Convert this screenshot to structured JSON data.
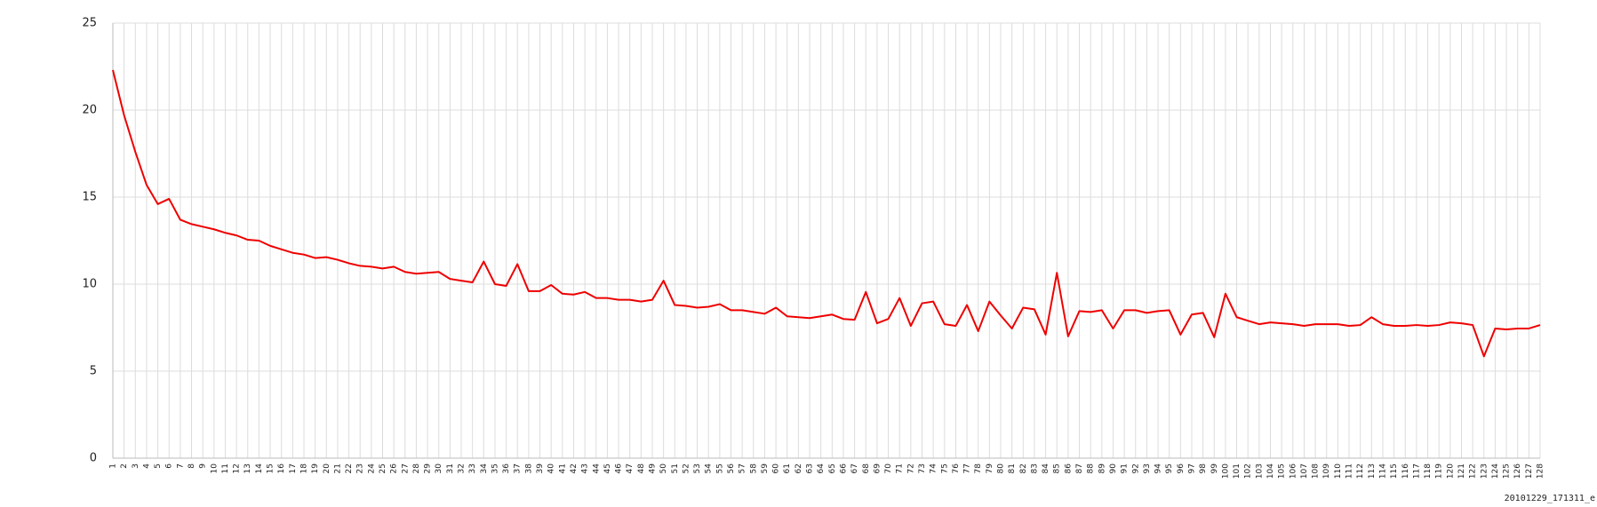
{
  "chart_data": {
    "type": "line",
    "categories": [
      "1",
      "2",
      "3",
      "4",
      "5",
      "6",
      "7",
      "8",
      "9",
      "10",
      "11",
      "12",
      "13",
      "14",
      "15",
      "16",
      "17",
      "18",
      "19",
      "20",
      "21",
      "22",
      "23",
      "24",
      "25",
      "26",
      "27",
      "28",
      "29",
      "30",
      "31",
      "32",
      "33",
      "34",
      "35",
      "36",
      "37",
      "38",
      "39",
      "40",
      "41",
      "42",
      "43",
      "44",
      "45",
      "46",
      "47",
      "48",
      "49",
      "50",
      "51",
      "52",
      "53",
      "54",
      "55",
      "56",
      "57",
      "58",
      "59",
      "60",
      "61",
      "62",
      "63",
      "64",
      "65",
      "66",
      "67",
      "68",
      "69",
      "70",
      "71",
      "72",
      "73",
      "74",
      "75",
      "76",
      "77",
      "78",
      "79",
      "80",
      "81",
      "82",
      "83",
      "84",
      "85",
      "86",
      "87",
      "88",
      "89",
      "90",
      "91",
      "92",
      "93",
      "94",
      "95",
      "96",
      "97",
      "98",
      "99",
      "100",
      "101",
      "102",
      "103",
      "104",
      "105",
      "106",
      "107",
      "108",
      "109",
      "110",
      "111",
      "112",
      "113",
      "114",
      "115",
      "116",
      "117",
      "118",
      "119",
      "120",
      "121",
      "122",
      "123",
      "124",
      "125",
      "126",
      "127",
      "128"
    ],
    "series": [
      {
        "color": "#ee0000",
        "values": [
          22.3,
          19.7,
          17.6,
          15.7,
          14.6,
          14.9,
          13.7,
          13.45,
          13.3,
          13.15,
          12.95,
          12.8,
          12.55,
          12.5,
          12.2,
          12.0,
          11.8,
          11.7,
          11.5,
          11.55,
          11.4,
          11.2,
          11.05,
          11.0,
          10.9,
          11.0,
          10.7,
          10.6,
          10.65,
          10.7,
          10.3,
          10.2,
          10.1,
          11.3,
          10.0,
          9.9,
          11.15,
          9.6,
          9.6,
          9.95,
          9.45,
          9.4,
          9.55,
          9.2,
          9.2,
          9.1,
          9.1,
          9.0,
          9.1,
          10.2,
          8.8,
          8.75,
          8.65,
          8.7,
          8.85,
          8.5,
          8.5,
          8.4,
          8.3,
          8.65,
          8.15,
          8.1,
          8.05,
          8.15,
          8.25,
          8.0,
          7.95,
          9.55,
          7.75,
          8.0,
          9.2,
          7.6,
          8.9,
          9.0,
          7.7,
          7.6,
          8.8,
          7.3,
          9.0,
          8.2,
          7.45,
          8.65,
          8.55,
          7.1,
          10.65,
          7.0,
          8.45,
          8.4,
          8.5,
          7.45,
          8.5,
          8.5,
          8.35,
          8.45,
          8.5,
          7.1,
          8.25,
          8.35,
          6.95,
          9.45,
          8.1,
          7.9,
          7.7,
          7.8,
          7.75,
          7.7,
          7.6,
          7.7,
          7.7,
          7.7,
          7.6,
          7.65,
          8.1,
          7.7,
          7.6,
          7.6,
          7.65,
          7.6,
          7.65,
          7.8,
          7.75,
          7.65,
          5.85,
          7.45,
          7.4,
          7.45,
          7.45,
          7.65
        ]
      }
    ],
    "ylim": [
      0,
      25
    ],
    "yticks": [
      0,
      5,
      10,
      15,
      20,
      25
    ],
    "grid": true,
    "caption": "20101229_171311_e"
  }
}
